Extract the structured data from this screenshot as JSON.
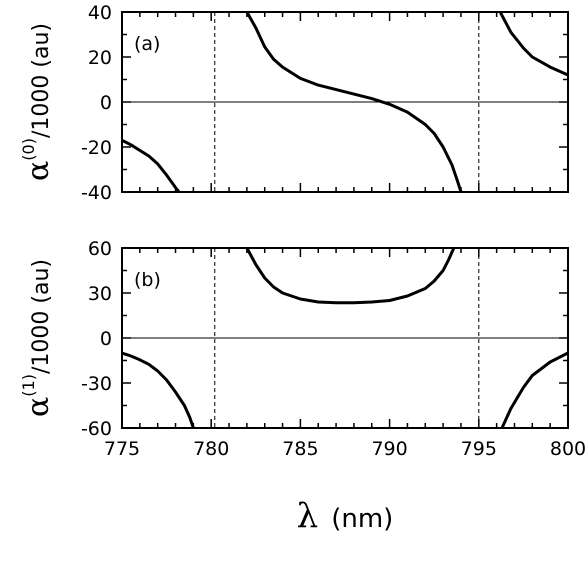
{
  "chart_data": [
    {
      "type": "line",
      "panel_label": "(a)",
      "ylabel": {
        "symbol": "α",
        "superscript": "(0)",
        "text": "/1000 (au)"
      },
      "xlim": [
        775,
        800
      ],
      "ylim": [
        -40,
        40
      ],
      "yticks": [
        -40,
        -20,
        0,
        20,
        40
      ],
      "zero_line": true,
      "vertical_lines": [
        780.2,
        795.0
      ],
      "series": [
        {
          "points": [
            [
              775.0,
              -17
            ],
            [
              775.5,
              -19
            ],
            [
              776.0,
              -21.5
            ],
            [
              776.5,
              -24
            ],
            [
              777.0,
              -27.5
            ],
            [
              777.5,
              -32.5
            ],
            [
              778.0,
              -38
            ],
            [
              778.2,
              -40
            ]
          ]
        },
        {
          "points": [
            [
              782.0,
              40
            ],
            [
              782.5,
              33
            ],
            [
              783.0,
              24.5
            ],
            [
              783.5,
              19
            ],
            [
              784.0,
              15.5
            ],
            [
              785.0,
              10.5
            ],
            [
              786.0,
              7.5
            ],
            [
              787.0,
              5.5
            ],
            [
              788.0,
              3.5
            ],
            [
              789.0,
              1.5
            ],
            [
              790.0,
              -1
            ],
            [
              791.0,
              -4.5
            ],
            [
              792.0,
              -10
            ],
            [
              792.5,
              -14
            ],
            [
              793.0,
              -20
            ],
            [
              793.5,
              -28
            ],
            [
              793.8,
              -35
            ],
            [
              794.0,
              -40
            ]
          ]
        },
        {
          "points": [
            [
              796.2,
              40
            ],
            [
              796.8,
              31
            ],
            [
              797.5,
              24
            ],
            [
              798.0,
              20
            ],
            [
              799.0,
              15.5
            ],
            [
              800.0,
              12
            ]
          ]
        }
      ]
    },
    {
      "type": "line",
      "panel_label": "(b)",
      "ylabel": {
        "symbol": "α",
        "superscript": "(1)",
        "text": "/1000 (au)"
      },
      "xlim": [
        775,
        800
      ],
      "ylim": [
        -60,
        60
      ],
      "yticks": [
        -60,
        -30,
        0,
        30,
        60
      ],
      "xticks": [
        775,
        780,
        785,
        790,
        795,
        800
      ],
      "zero_line": true,
      "vertical_lines": [
        780.2,
        795.0
      ],
      "series": [
        {
          "points": [
            [
              775.0,
              -10
            ],
            [
              775.5,
              -12
            ],
            [
              776.0,
              -14.5
            ],
            [
              776.5,
              -17.5
            ],
            [
              777.0,
              -22
            ],
            [
              777.5,
              -28
            ],
            [
              778.0,
              -36
            ],
            [
              778.5,
              -45
            ],
            [
              778.8,
              -53
            ],
            [
              779.0,
              -60
            ]
          ]
        },
        {
          "points": [
            [
              782.0,
              60
            ],
            [
              782.5,
              49
            ],
            [
              783.0,
              40
            ],
            [
              783.5,
              34
            ],
            [
              784.0,
              30
            ],
            [
              785.0,
              26
            ],
            [
              786.0,
              24
            ],
            [
              787.0,
              23.5
            ],
            [
              788.0,
              23.5
            ],
            [
              789.0,
              24
            ],
            [
              790.0,
              25
            ],
            [
              791.0,
              28
            ],
            [
              792.0,
              33
            ],
            [
              792.5,
              38
            ],
            [
              793.0,
              45
            ],
            [
              793.3,
              52
            ],
            [
              793.6,
              60
            ]
          ]
        },
        {
          "points": [
            [
              796.3,
              -60
            ],
            [
              796.8,
              -47
            ],
            [
              797.5,
              -33
            ],
            [
              798.0,
              -25
            ],
            [
              799.0,
              -16
            ],
            [
              800.0,
              -10
            ]
          ]
        }
      ]
    }
  ],
  "shared_xlabel": {
    "symbol": "λ",
    "text": "(nm)"
  }
}
